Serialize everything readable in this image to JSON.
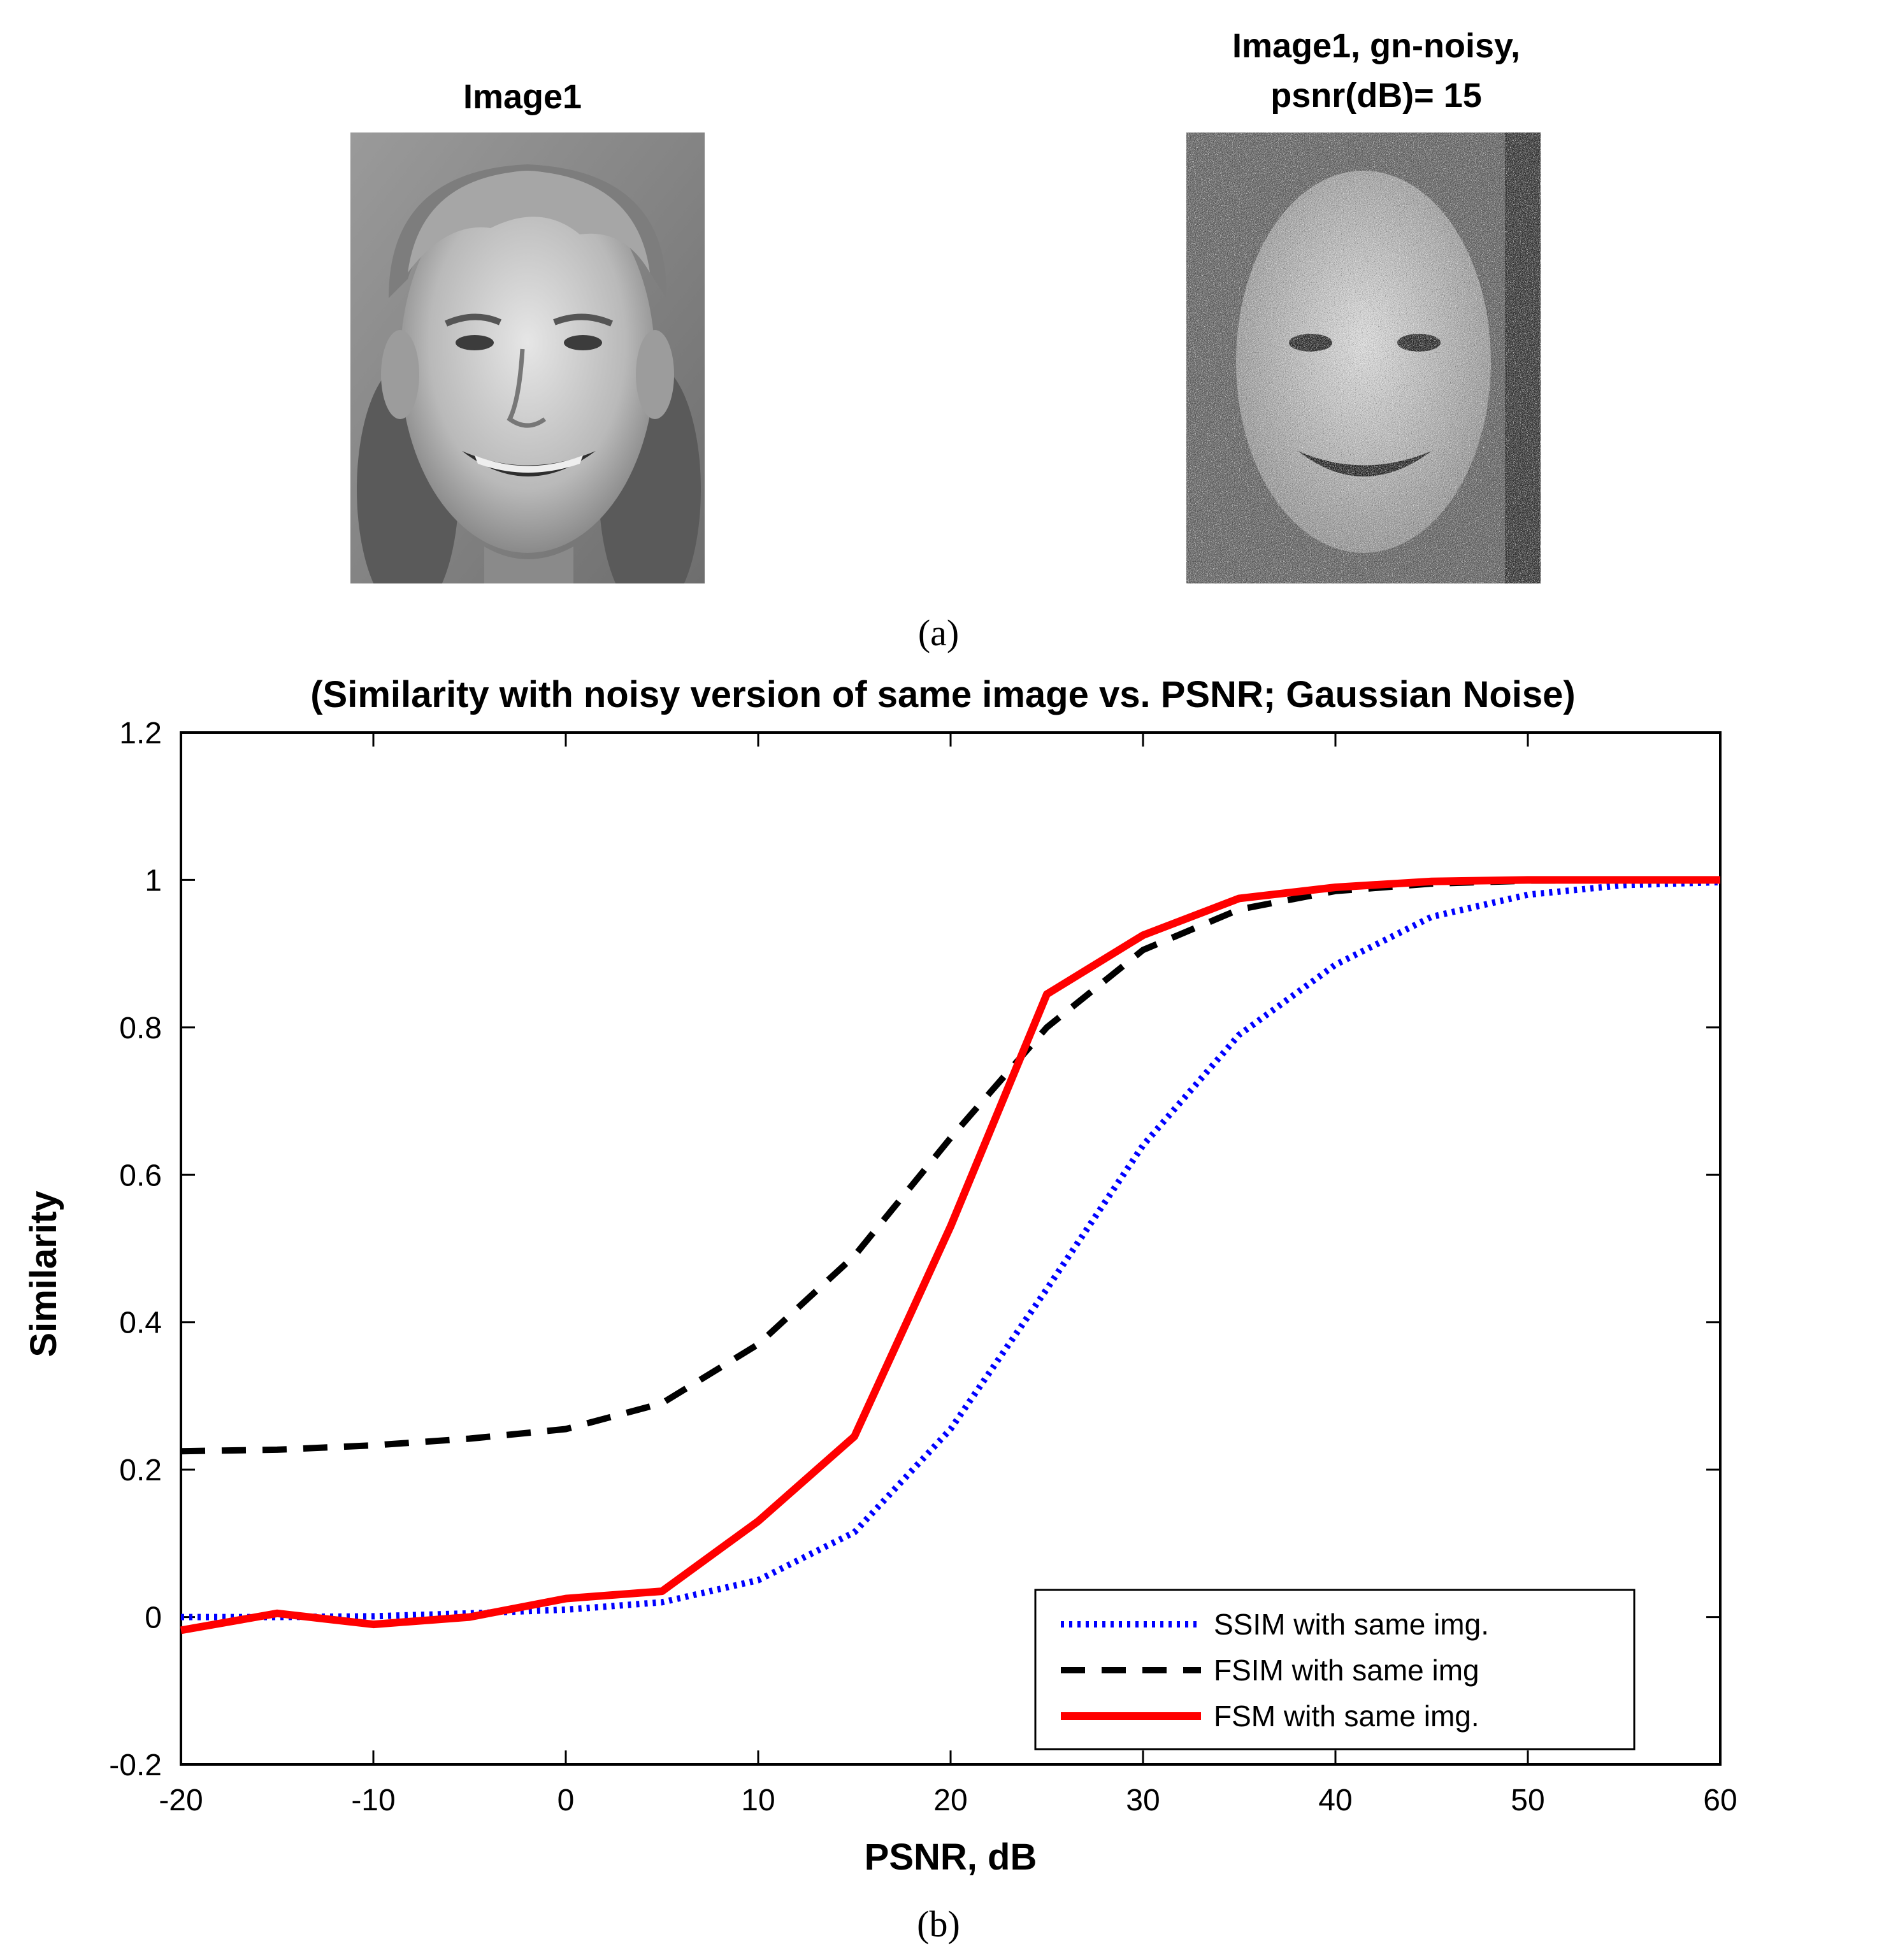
{
  "figure": {
    "panel_a": {
      "left_title": "Image1",
      "right_title_line1": "Image1, gn-noisy,",
      "right_title_line2": "psnr(dB)= 15",
      "caption": "(a)"
    },
    "panel_b_caption": "(b)"
  },
  "chart_data": {
    "type": "line",
    "title": "(Similarity with noisy version of same image vs. PSNR; Gaussian Noise)",
    "xlabel": "PSNR, dB",
    "ylabel": "Similarity",
    "xlim": [
      -20,
      60
    ],
    "ylim": [
      -0.2,
      1.2
    ],
    "xticks": [
      -20,
      -10,
      0,
      10,
      20,
      30,
      40,
      50,
      60
    ],
    "yticks": [
      -0.2,
      0,
      0.2,
      0.4,
      0.6,
      0.8,
      1,
      1.2
    ],
    "x": [
      -20,
      -15,
      -10,
      -5,
      0,
      5,
      10,
      15,
      20,
      25,
      30,
      35,
      40,
      45,
      50,
      55,
      60
    ],
    "grid": false,
    "legend_position": "bottom-right",
    "series": [
      {
        "name": "SSIM with same img.",
        "color": "#0000ff",
        "style": "dotted",
        "values": [
          0.0,
          0.0,
          0.001,
          0.005,
          0.01,
          0.02,
          0.05,
          0.115,
          0.255,
          0.445,
          0.64,
          0.79,
          0.885,
          0.95,
          0.98,
          0.993,
          0.997
        ]
      },
      {
        "name": "FSIM with same img",
        "color": "#000000",
        "style": "dashed",
        "values": [
          0.225,
          0.227,
          0.233,
          0.242,
          0.255,
          0.29,
          0.37,
          0.49,
          0.65,
          0.8,
          0.905,
          0.96,
          0.985,
          0.995,
          0.999,
          1.0,
          1.0
        ]
      },
      {
        "name": "FSM with same img.",
        "color": "#ff0000",
        "style": "solid",
        "values": [
          -0.018,
          0.005,
          -0.01,
          0.0,
          0.025,
          0.035,
          0.13,
          0.245,
          0.53,
          0.845,
          0.925,
          0.975,
          0.99,
          0.998,
          1.0,
          1.0,
          1.0
        ]
      }
    ]
  }
}
